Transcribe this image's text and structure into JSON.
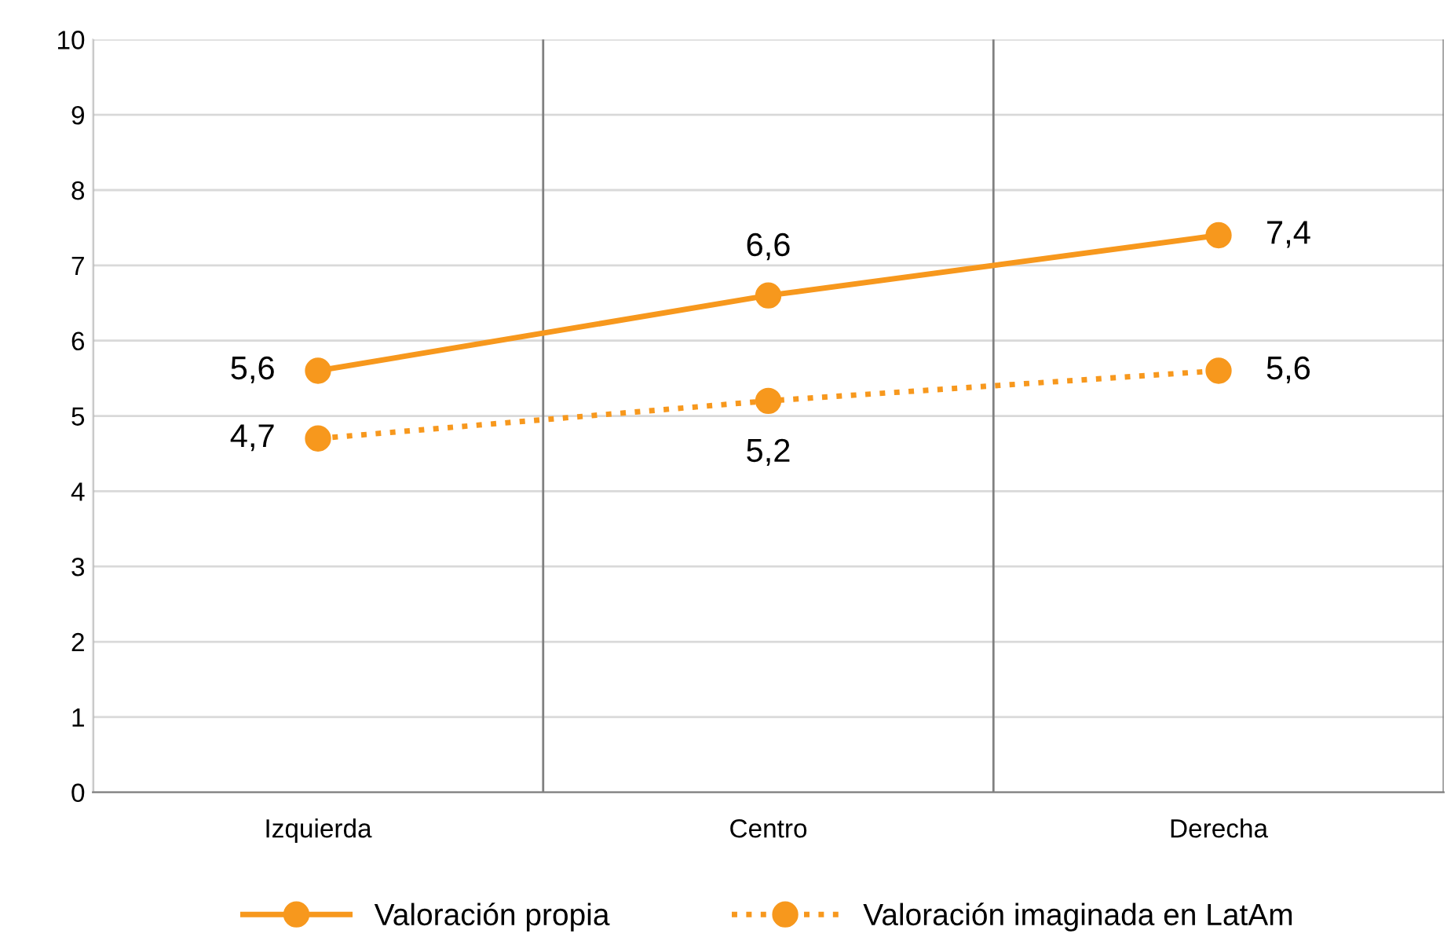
{
  "chart_data": {
    "type": "line",
    "categories": [
      "Izquierda",
      "Centro",
      "Derecha"
    ],
    "series": [
      {
        "name": "Valoración propia",
        "color": "#f7981d",
        "values": [
          5.6,
          6.6,
          7.4
        ],
        "value_labels": [
          "5,6",
          "6,6",
          "7,4"
        ],
        "line_style": "solid"
      },
      {
        "name": "Valoración imaginada en LatAm",
        "color": "#f7981d",
        "values": [
          4.7,
          5.2,
          5.6
        ],
        "value_labels": [
          "4,7",
          "5,2",
          "5,6"
        ],
        "line_style": "dotted"
      }
    ],
    "ylim": [
      0,
      10
    ],
    "yticks": [
      0,
      1,
      2,
      3,
      4,
      5,
      6,
      7,
      8,
      9,
      10
    ],
    "grid": true,
    "legend": "bottom",
    "marker": "circle"
  }
}
